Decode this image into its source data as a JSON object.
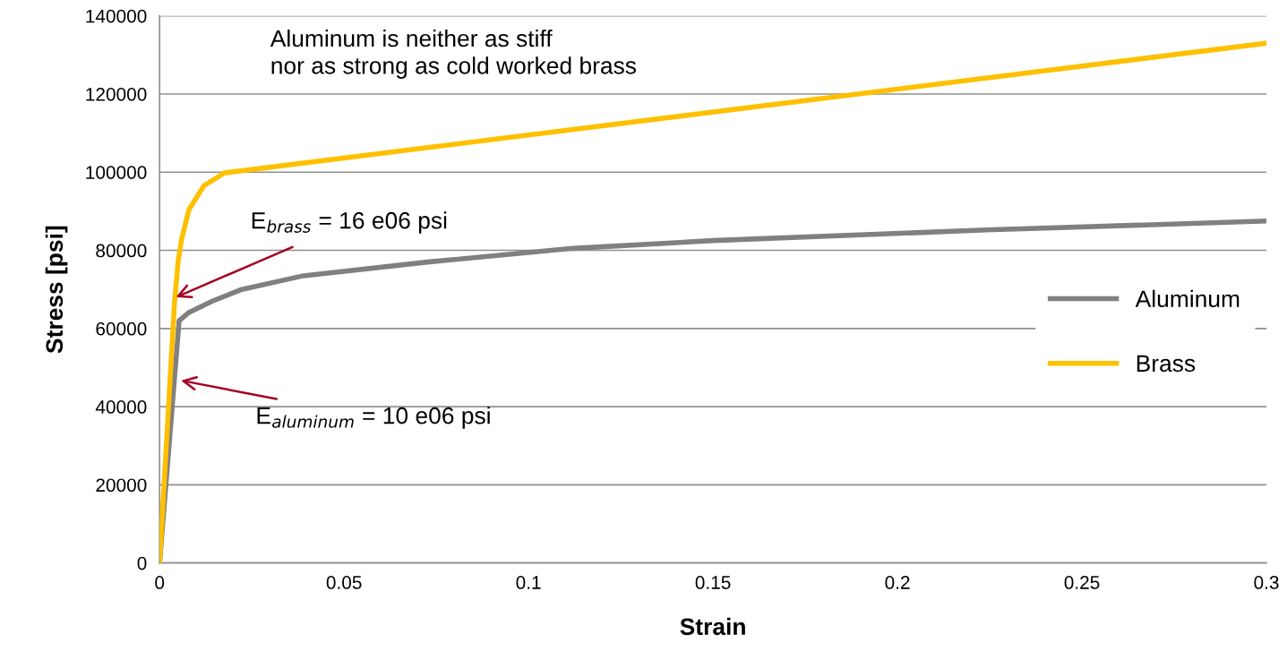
{
  "chart_data": {
    "type": "line",
    "xlabel": "Strain",
    "ylabel": "Stress [psi]",
    "xlim": [
      0,
      0.3
    ],
    "ylim": [
      0,
      140000
    ],
    "xticks": [
      0,
      0.05,
      0.1,
      0.15,
      0.2,
      0.25,
      0.3
    ],
    "yticks": [
      0,
      20000,
      40000,
      60000,
      80000,
      100000,
      120000,
      140000
    ],
    "grid": "y",
    "legend": "right",
    "marker": "none",
    "line_style": "solid",
    "series": [
      {
        "name": "Aluminum",
        "color": "#808080",
        "x": [
          0,
          0.0053,
          0.0078,
          0.0143,
          0.0223,
          0.039,
          0.0726,
          0.112,
          0.15,
          0.224,
          0.3
        ],
        "values": [
          0,
          62000,
          64000,
          67000,
          70000,
          73500,
          77000,
          80500,
          82500,
          85200,
          87500
        ]
      },
      {
        "name": "Brass",
        "color": "#ffc000",
        "x": [
          0,
          0.004,
          0.005,
          0.006,
          0.008,
          0.012,
          0.0175,
          0.3
        ],
        "values": [
          0,
          66000,
          77000,
          83000,
          90500,
          96500,
          99800,
          133000
        ]
      }
    ],
    "annotations": [
      "Aluminum is neither as stiff\nnor as strong as cold worked brass",
      {
        "text": "E$_{brass}$ = 16 e06 psi",
        "x": 0.0044,
        "y": 68000
      },
      {
        "text": "E$_{aluminum}$ = 10 e06 psi",
        "x": 0.0058,
        "y": 46700
      }
    ]
  }
}
